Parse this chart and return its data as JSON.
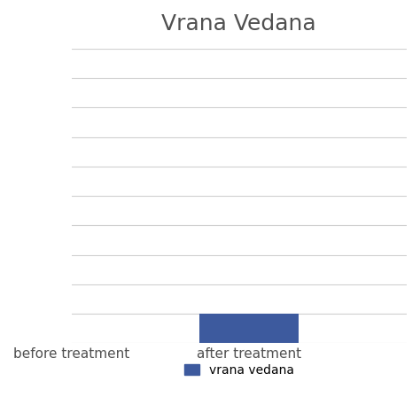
{
  "title": "Vrana Vedana",
  "categories": [
    "before treatment",
    "after treatment"
  ],
  "values": [
    0,
    1.0
  ],
  "bar_color": "#3D5A9E",
  "legend_label": "vrana vedana",
  "ylim": [
    0,
    10
  ],
  "num_gridlines": 11,
  "background_color": "#ffffff",
  "grid_color": "#d0d0d0",
  "title_fontsize": 18,
  "label_fontsize": 11,
  "legend_fontsize": 10,
  "bar_width": 0.5,
  "text_color": "#505050"
}
